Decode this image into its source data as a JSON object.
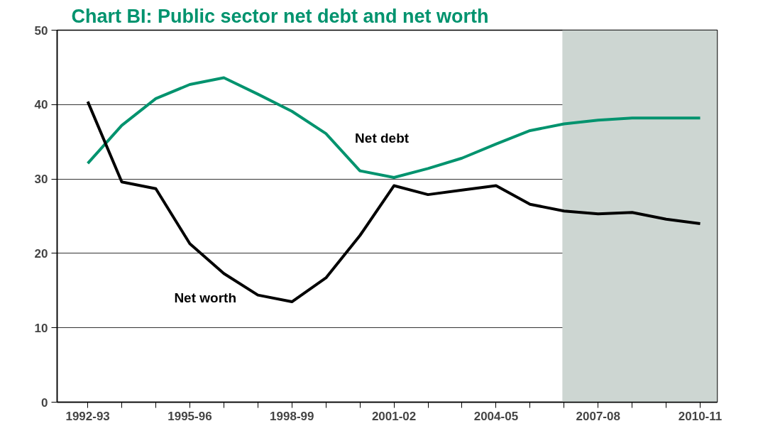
{
  "chart_data": {
    "type": "line",
    "title": "Chart BI: Public sector net debt and net worth",
    "categories": [
      "1992-93",
      null,
      null,
      "1995-96",
      null,
      null,
      "1998-99",
      null,
      null,
      "2001-02",
      null,
      null,
      "2004-05",
      null,
      null,
      "2007-08",
      null,
      null,
      "2010-11"
    ],
    "ylim": [
      0,
      50
    ],
    "yticks": [
      0,
      10,
      20,
      30,
      40,
      50
    ],
    "grid": "y",
    "series": [
      {
        "name": "Net debt",
        "color": "#00936e",
        "values": [
          32.1,
          37.2,
          40.8,
          42.7,
          43.6,
          41.4,
          39.1,
          36.1,
          31.1,
          30.2,
          31.4,
          32.8,
          34.7,
          36.5,
          37.4,
          37.9,
          38.2,
          38.2,
          38.2
        ]
      },
      {
        "name": "Net worth",
        "color": "#000000",
        "values": [
          40.4,
          29.6,
          28.7,
          21.3,
          17.3,
          14.4,
          13.5,
          16.7,
          22.4,
          29.1,
          27.9,
          28.5,
          29.1,
          26.6,
          25.7,
          25.3,
          25.5,
          24.6,
          24.0
        ]
      }
    ]
  }
}
